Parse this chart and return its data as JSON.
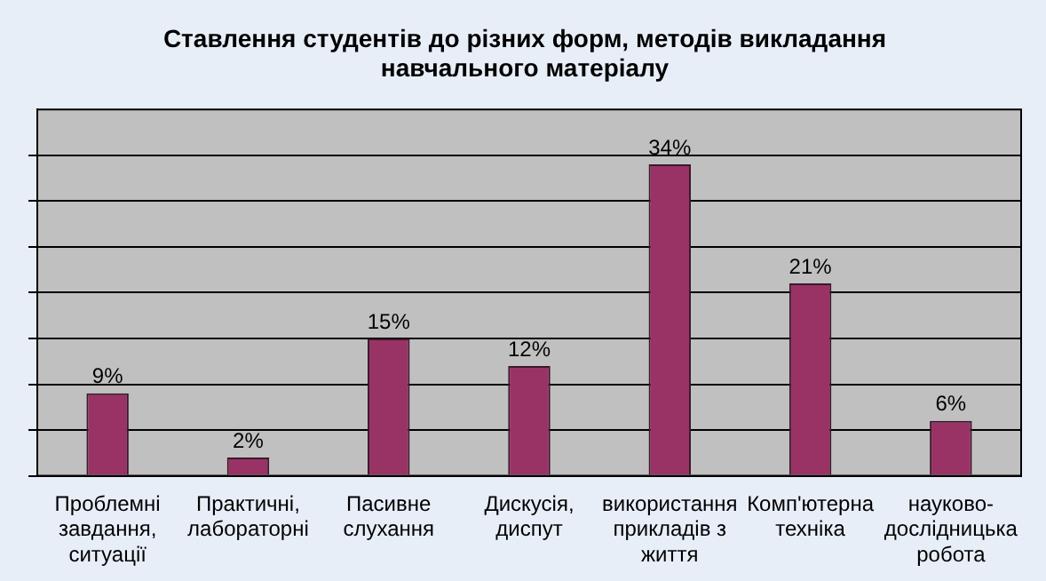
{
  "chart_data": {
    "type": "bar",
    "title": "Ставлення студентів до різних форм, методів викладання навчального матеріалу",
    "categories": [
      "Проблемні завдання, ситуації",
      "Практичні, лабораторні",
      "Пасивне слухання",
      "Дискусія, диспут",
      "використання прикладів з життя",
      "Комп'ютерна техніка",
      "науково-дослідницька робота"
    ],
    "values": [
      9,
      2,
      15,
      12,
      34,
      21,
      6
    ],
    "value_labels": [
      "9%",
      "2%",
      "15%",
      "12%",
      "34%",
      "21%",
      "6%"
    ],
    "color": "#993366",
    "ylim": [
      0,
      40
    ],
    "yticks": [
      {
        "value": 0,
        "label": null
      },
      {
        "value": 5,
        "label": null
      },
      {
        "value": 10,
        "label": null
      },
      {
        "value": 15,
        "label": null
      },
      {
        "value": 20,
        "label": null
      },
      {
        "value": 25,
        "label": null
      },
      {
        "value": 30,
        "label": null
      },
      {
        "value": 35,
        "label": null
      }
    ],
    "grid": "y",
    "legend": false,
    "tick_labels": "x"
  }
}
